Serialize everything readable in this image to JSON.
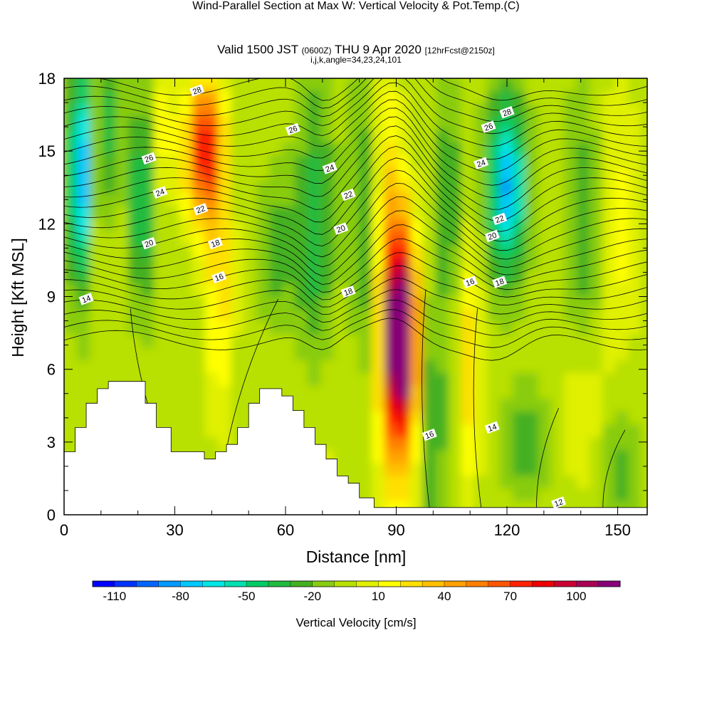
{
  "header": {
    "title": "Wind-Parallel Section at Max W: Vertical Velocity & Pot.Temp.",
    "copyright": "(C)",
    "valid_prefix": "Valid 1500 JST",
    "valid_zulu": "(0600Z)",
    "valid_date": "THU 9 Apr 2020",
    "forecast": "[12hrFcst@2150z]",
    "section_info": "i,j,k,angle=34,23,24,101"
  },
  "chart_data": {
    "type": "heatmap",
    "xlabel": "Distance [nm]",
    "ylabel": "Height [Kft MSL]",
    "xlim": [
      0,
      158
    ],
    "ylim": [
      0,
      18
    ],
    "x_ticks": [
      0,
      30,
      60,
      90,
      120,
      150
    ],
    "y_ticks": [
      0,
      3,
      6,
      9,
      12,
      15,
      18
    ],
    "colorbar": {
      "label": "Vertical Velocity [cm/s]",
      "tick_labels": [
        "-110",
        "-80",
        "-50",
        "-20",
        "10",
        "40",
        "70",
        "100"
      ],
      "range": [
        -120,
        120
      ],
      "colors": [
        "#0000ff",
        "#0033ff",
        "#0066ff",
        "#0099ff",
        "#00c8ff",
        "#00e6e6",
        "#00e0b0",
        "#00cc66",
        "#20bb40",
        "#44b020",
        "#88cc11",
        "#b8e000",
        "#e0f000",
        "#ffff00",
        "#ffe000",
        "#ffc000",
        "#ffa000",
        "#ff8000",
        "#ff5500",
        "#ff2200",
        "#ee0000",
        "#cc0033",
        "#aa0055",
        "#880077"
      ]
    },
    "max_updraft": {
      "x": 91,
      "z": 7.5,
      "value_cm_s": 120
    },
    "theta_contour_labels": [
      {
        "text": "28",
        "x": 36,
        "z": 17.5
      },
      {
        "text": "26",
        "x": 23,
        "z": 14.7
      },
      {
        "text": "24",
        "x": 26,
        "z": 13.3
      },
      {
        "text": "22",
        "x": 37,
        "z": 12.6
      },
      {
        "text": "20",
        "x": 23,
        "z": 11.2
      },
      {
        "text": "18",
        "x": 41,
        "z": 11.2
      },
      {
        "text": "16",
        "x": 42,
        "z": 9.8
      },
      {
        "text": "14",
        "x": 6,
        "z": 8.9
      },
      {
        "text": "26",
        "x": 62,
        "z": 15.9
      },
      {
        "text": "24",
        "x": 72,
        "z": 14.3
      },
      {
        "text": "22",
        "x": 77,
        "z": 13.2
      },
      {
        "text": "20",
        "x": 75,
        "z": 11.8
      },
      {
        "text": "18",
        "x": 77,
        "z": 9.2
      },
      {
        "text": "28",
        "x": 120,
        "z": 16.6
      },
      {
        "text": "26",
        "x": 115,
        "z": 16.0
      },
      {
        "text": "24",
        "x": 113,
        "z": 14.5
      },
      {
        "text": "22",
        "x": 118,
        "z": 12.2
      },
      {
        "text": "20",
        "x": 116,
        "z": 11.5
      },
      {
        "text": "18",
        "x": 118,
        "z": 9.6
      },
      {
        "text": "16",
        "x": 110,
        "z": 9.6
      },
      {
        "text": "16",
        "x": 99,
        "z": 3.3
      },
      {
        "text": "14",
        "x": 116,
        "z": 3.6
      },
      {
        "text": "12",
        "x": 134,
        "z": 0.5
      }
    ]
  }
}
